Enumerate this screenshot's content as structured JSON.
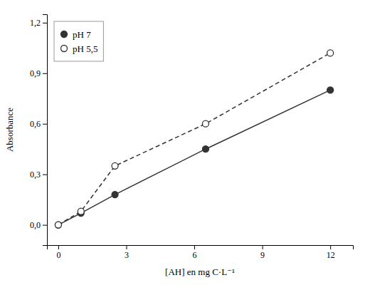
{
  "chart_data": {
    "type": "line",
    "xlabel": "[AH] en mg C·L⁻¹",
    "ylabel": "Absorbance",
    "x": [
      0,
      1.0,
      2.5,
      6.5,
      12.0
    ],
    "series": [
      {
        "name": "pH 7",
        "color": "#333333",
        "marker": "filled-circle",
        "line_style": "solid",
        "values": [
          0.0,
          0.07,
          0.18,
          0.45,
          0.8
        ]
      },
      {
        "name": "pH 5,5",
        "color": "#333333",
        "marker": "open-circle",
        "line_style": "dashed",
        "values": [
          0.0,
          0.08,
          0.35,
          0.6,
          1.02
        ]
      }
    ],
    "xlim": [
      -0.5,
      13.0
    ],
    "ylim": [
      -0.12,
      1.25
    ],
    "xticks": [
      0,
      3,
      6,
      9,
      12
    ],
    "yticks": [
      {
        "value": 0.0,
        "label": "0,0"
      },
      {
        "value": 0.3,
        "label": "0,3"
      },
      {
        "value": 0.6,
        "label": "0,6"
      },
      {
        "value": 0.9,
        "label": "0,9"
      },
      {
        "value": 1.2,
        "label": "1,2"
      }
    ],
    "grid": false,
    "legend": "upper left"
  }
}
